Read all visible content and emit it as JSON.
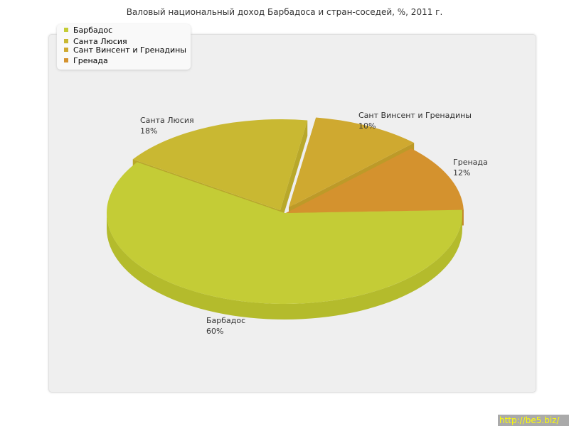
{
  "chart_data": {
    "type": "pie",
    "title": "Валовый национальный доход Барбадоса и стран-соседей, %, 2011 г.",
    "slices": [
      {
        "name": "Барбадос",
        "value": 60,
        "label": "60%",
        "color": "#c4cc36",
        "side": "#b4bb2c"
      },
      {
        "name": "Санта Люсия",
        "value": 18,
        "label": "18%",
        "color": "#c9b832",
        "side": "#b8a82a"
      },
      {
        "name": "Сант Винсент и Гренадины",
        "value": 10,
        "label": "10%",
        "color": "#cfa930",
        "side": "#bd9a28"
      },
      {
        "name": "Гренада",
        "value": 12,
        "label": "12%",
        "color": "#d4922e",
        "side": "#c28426"
      }
    ],
    "legend_position": "top-left"
  },
  "watermark": "http://be5.biz/"
}
